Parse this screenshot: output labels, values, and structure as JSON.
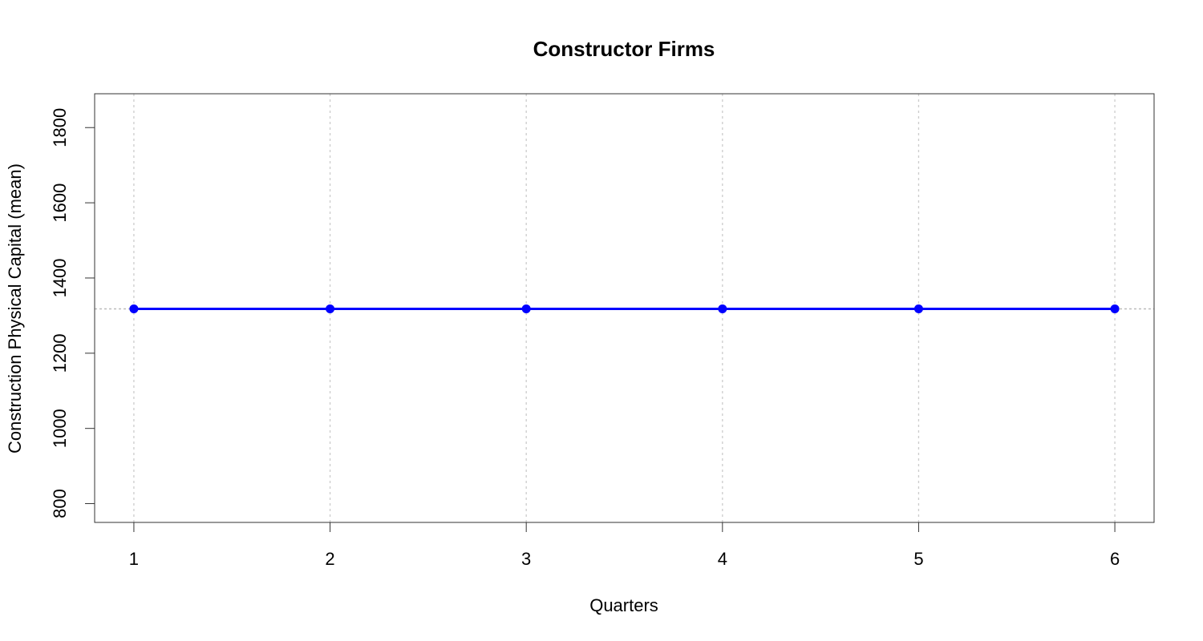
{
  "chart_data": {
    "type": "line",
    "title": "Constructor Firms",
    "xlabel": "Quarters",
    "ylabel": "Construction Physical Capital (mean)",
    "x": [
      1,
      2,
      3,
      4,
      5,
      6
    ],
    "xticks": [
      "1",
      "2",
      "3",
      "4",
      "5",
      "6"
    ],
    "yticks": [
      "800",
      "1000",
      "1200",
      "1400",
      "1600",
      "1800"
    ],
    "xlim": [
      0.8,
      6.2
    ],
    "ylim": [
      750,
      1890
    ],
    "grid": true,
    "reference_line_y": 1318,
    "series": [
      {
        "values": [
          1318,
          1318,
          1318,
          1318,
          1318,
          1318
        ],
        "color": "#0000ff",
        "marker": "filled-circle"
      }
    ],
    "colors": {
      "grid": "#cccccc",
      "reference_line": "#bbbbbb",
      "axis": "#333333"
    }
  }
}
